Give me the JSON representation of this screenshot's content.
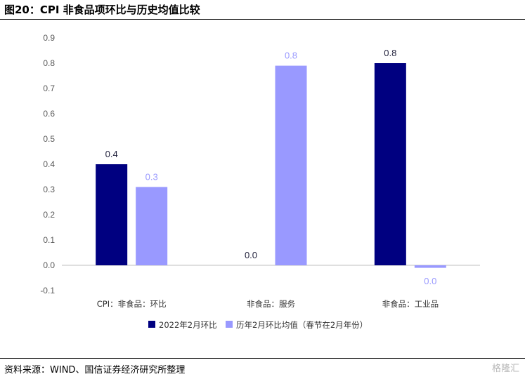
{
  "figure": {
    "title": "图20：CPI 非食品项环比与历史均值比较",
    "source": "资料来源：WIND、国信证券经济研究所整理",
    "watermark": "格隆汇"
  },
  "chart_data": {
    "type": "bar",
    "categories": [
      "CPI：非食品：环比",
      "非食品：服务",
      "非食品：工业品"
    ],
    "series": [
      {
        "name": "2022年2月环比",
        "values": [
          0.4,
          0.0,
          0.8
        ],
        "color": "#000080",
        "labels": [
          "0.4",
          "0.0",
          "0.8"
        ],
        "label_color": "#1f1f3a"
      },
      {
        "name": "历年2月环比均值（春节在2月年份）",
        "values": [
          0.31,
          0.79,
          -0.01
        ],
        "color": "#9999ff",
        "labels": [
          "0.3",
          "0.8",
          "0.0"
        ],
        "label_color": "#9999ff"
      }
    ],
    "yticks": [
      "0.9",
      "0.8",
      "0.7",
      "0.6",
      "0.5",
      "0.4",
      "0.3",
      "0.2",
      "0.1",
      "0.0",
      "-0.1"
    ],
    "ylim": [
      -0.1,
      0.9
    ],
    "grid": false,
    "legend": "bottom"
  }
}
